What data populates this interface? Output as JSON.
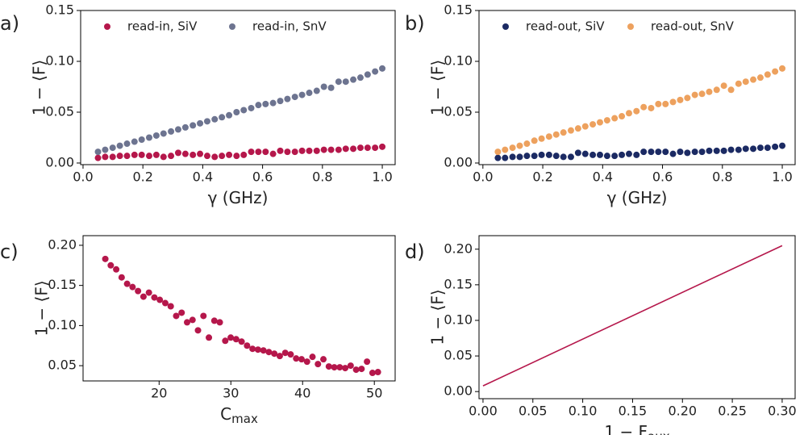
{
  "chart_data": [
    {
      "type": "scatter",
      "panel_label": "a)",
      "ylabel": "1 − ⟨F⟩",
      "xlabel": "γ (GHz)",
      "xlim": [
        -0.008,
        1.043
      ],
      "ylim": [
        -0.0016,
        0.15
      ],
      "xticks": [
        {
          "value": 0,
          "label": "0.0"
        },
        {
          "value": 0.2,
          "label": "0.2"
        },
        {
          "value": 0.4,
          "label": "0.4"
        },
        {
          "value": 0.6,
          "label": "0.6"
        },
        {
          "value": 0.8,
          "label": "0.8"
        },
        {
          "value": 1,
          "label": "1.0"
        }
      ],
      "yticks": [
        {
          "value": 0,
          "label": "0.00"
        },
        {
          "value": 0.05,
          "label": "0.05"
        },
        {
          "value": 0.1,
          "label": "0.10"
        },
        {
          "value": 0.15,
          "label": "0.15"
        }
      ],
      "legend": "upper left",
      "x": [
        0.05,
        0.074,
        0.099,
        0.123,
        0.147,
        0.172,
        0.196,
        0.221,
        0.245,
        0.269,
        0.294,
        0.318,
        0.342,
        0.367,
        0.391,
        0.415,
        0.44,
        0.464,
        0.488,
        0.513,
        0.537,
        0.562,
        0.586,
        0.61,
        0.635,
        0.659,
        0.683,
        0.708,
        0.732,
        0.756,
        0.781,
        0.805,
        0.829,
        0.854,
        0.878,
        0.903,
        0.927,
        0.951,
        0.976,
        1.0
      ],
      "series": [
        {
          "name": "read-in, SiV",
          "color": "#b5174b",
          "values": [
            0.005,
            0.006,
            0.006,
            0.007,
            0.007,
            0.008,
            0.008,
            0.007,
            0.008,
            0.006,
            0.007,
            0.01,
            0.009,
            0.008,
            0.009,
            0.007,
            0.006,
            0.007,
            0.008,
            0.007,
            0.008,
            0.011,
            0.011,
            0.011,
            0.009,
            0.012,
            0.011,
            0.011,
            0.012,
            0.012,
            0.012,
            0.013,
            0.013,
            0.013,
            0.014,
            0.014,
            0.015,
            0.015,
            0.015,
            0.016
          ]
        },
        {
          "name": "read-in, SnV",
          "color": "#6d7490",
          "values": [
            0.011,
            0.013,
            0.015,
            0.017,
            0.019,
            0.021,
            0.023,
            0.025,
            0.027,
            0.029,
            0.031,
            0.033,
            0.035,
            0.037,
            0.039,
            0.041,
            0.043,
            0.045,
            0.047,
            0.05,
            0.052,
            0.054,
            0.057,
            0.058,
            0.059,
            0.061,
            0.063,
            0.065,
            0.067,
            0.069,
            0.071,
            0.075,
            0.074,
            0.08,
            0.08,
            0.082,
            0.084,
            0.087,
            0.09,
            0.093
          ]
        }
      ]
    },
    {
      "type": "scatter",
      "panel_label": "b)",
      "ylabel": "1 − ⟨F⟩",
      "xlabel": "γ (GHz)",
      "xlim": [
        -0.013,
        1.043
      ],
      "ylim": [
        -0.0016,
        0.15
      ],
      "xticks": [
        {
          "value": 0,
          "label": "0.0"
        },
        {
          "value": 0.2,
          "label": "0.2"
        },
        {
          "value": 0.4,
          "label": "0.4"
        },
        {
          "value": 0.6,
          "label": "0.6"
        },
        {
          "value": 0.8,
          "label": "0.8"
        },
        {
          "value": 1,
          "label": "1.0"
        }
      ],
      "yticks": [
        {
          "value": 0,
          "label": "0.00"
        },
        {
          "value": 0.05,
          "label": "0.05"
        },
        {
          "value": 0.1,
          "label": "0.10"
        },
        {
          "value": 0.15,
          "label": "0.15"
        }
      ],
      "legend": "upper left",
      "x": [
        0.05,
        0.074,
        0.099,
        0.123,
        0.147,
        0.172,
        0.196,
        0.221,
        0.245,
        0.269,
        0.294,
        0.318,
        0.342,
        0.367,
        0.391,
        0.415,
        0.44,
        0.464,
        0.488,
        0.513,
        0.537,
        0.562,
        0.586,
        0.61,
        0.635,
        0.659,
        0.683,
        0.708,
        0.732,
        0.756,
        0.781,
        0.805,
        0.829,
        0.854,
        0.878,
        0.903,
        0.927,
        0.951,
        0.976,
        1.0
      ],
      "series": [
        {
          "name": "read-out, SiV",
          "color": "#1b2a63",
          "values": [
            0.005,
            0.005,
            0.006,
            0.006,
            0.007,
            0.007,
            0.008,
            0.008,
            0.007,
            0.006,
            0.006,
            0.01,
            0.009,
            0.008,
            0.008,
            0.007,
            0.007,
            0.008,
            0.009,
            0.008,
            0.011,
            0.011,
            0.011,
            0.011,
            0.009,
            0.011,
            0.01,
            0.011,
            0.011,
            0.012,
            0.012,
            0.012,
            0.013,
            0.013,
            0.014,
            0.014,
            0.015,
            0.015,
            0.016,
            0.017
          ]
        },
        {
          "name": "read-out, SnV",
          "color": "#eda15e",
          "values": [
            0.011,
            0.013,
            0.015,
            0.017,
            0.019,
            0.022,
            0.024,
            0.026,
            0.028,
            0.03,
            0.032,
            0.034,
            0.036,
            0.038,
            0.04,
            0.042,
            0.044,
            0.046,
            0.049,
            0.051,
            0.055,
            0.054,
            0.058,
            0.058,
            0.06,
            0.062,
            0.064,
            0.067,
            0.068,
            0.07,
            0.072,
            0.076,
            0.072,
            0.078,
            0.08,
            0.082,
            0.084,
            0.087,
            0.09,
            0.093
          ]
        }
      ]
    },
    {
      "type": "scatter",
      "panel_label": "c)",
      "ylabel": "1 − ⟨F⟩",
      "xlabel": "C",
      "xlabel_sub": "max",
      "xlim": [
        9.4,
        52.9
      ],
      "ylim": [
        0.031,
        0.212
      ],
      "xticks": [
        20,
        30,
        40,
        50
      ],
      "yticks": [
        {
          "value": 0.05,
          "label": "0.05"
        },
        {
          "value": 0.1,
          "label": "0.10"
        },
        {
          "value": 0.15,
          "label": "0.15"
        },
        {
          "value": 0.2,
          "label": "0.20"
        }
      ],
      "x": [
        12.5,
        13.26,
        14.02,
        14.78,
        15.54,
        16.3,
        17.06,
        17.82,
        18.58,
        19.34,
        20.1,
        20.86,
        21.62,
        22.38,
        23.14,
        23.9,
        24.66,
        25.42,
        26.18,
        26.94,
        27.7,
        28.46,
        29.22,
        29.98,
        30.74,
        31.5,
        32.26,
        33.02,
        33.78,
        34.54,
        35.3,
        36.06,
        36.82,
        37.58,
        38.34,
        39.1,
        39.86,
        40.62,
        41.38,
        42.14,
        42.9,
        43.66,
        44.42,
        45.18,
        45.94,
        46.7,
        47.46,
        48.22,
        48.98,
        49.74,
        50.5
      ],
      "series": [
        {
          "color": "#b5174b",
          "values": [
            0.183,
            0.175,
            0.17,
            0.16,
            0.152,
            0.148,
            0.143,
            0.136,
            0.141,
            0.135,
            0.132,
            0.128,
            0.124,
            0.112,
            0.116,
            0.104,
            0.107,
            0.094,
            0.112,
            0.085,
            0.106,
            0.104,
            0.081,
            0.085,
            0.083,
            0.08,
            0.075,
            0.071,
            0.07,
            0.069,
            0.067,
            0.065,
            0.062,
            0.066,
            0.064,
            0.059,
            0.058,
            0.055,
            0.061,
            0.052,
            0.058,
            0.049,
            0.048,
            0.048,
            0.047,
            0.05,
            0.045,
            0.046,
            0.055,
            0.041,
            0.042
          ]
        }
      ]
    },
    {
      "type": "line",
      "panel_label": "d)",
      "ylabel": "1 − ⟨F⟩",
      "xlabel": "1 − F",
      "xlabel_sub": "aux",
      "xlim": [
        -0.004,
        0.313
      ],
      "ylim": [
        -0.01,
        0.219
      ],
      "xticks": [
        {
          "value": 0,
          "label": "0.00"
        },
        {
          "value": 0.05,
          "label": "0.05"
        },
        {
          "value": 0.1,
          "label": "0.10"
        },
        {
          "value": 0.15,
          "label": "0.15"
        },
        {
          "value": 0.2,
          "label": "0.20"
        },
        {
          "value": 0.25,
          "label": "0.25"
        },
        {
          "value": 0.3,
          "label": "0.30"
        }
      ],
      "yticks": [
        {
          "value": 0,
          "label": "0.00"
        },
        {
          "value": 0.05,
          "label": "0.05"
        },
        {
          "value": 0.1,
          "label": "0.10"
        },
        {
          "value": 0.15,
          "label": "0.15"
        },
        {
          "value": 0.2,
          "label": "0.20"
        }
      ],
      "x": [
        0,
        0.3
      ],
      "series": [
        {
          "color": "#b5174b",
          "values": [
            0.008,
            0.205
          ]
        }
      ]
    }
  ]
}
